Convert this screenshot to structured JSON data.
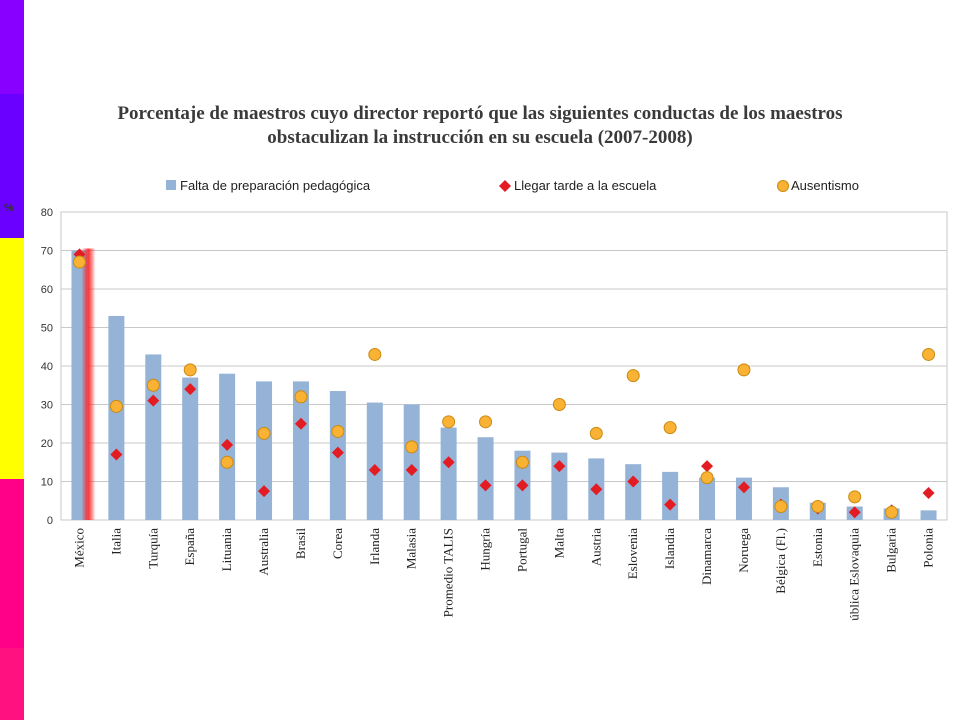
{
  "side_strips": [
    {
      "color": "#8800ff",
      "from": 0,
      "to": 0.13
    },
    {
      "color": "#6a00ff",
      "from": 0.13,
      "to": 0.33
    },
    {
      "color": "#ffff00",
      "from": 0.33,
      "to": 0.665
    },
    {
      "color": "#ff0088",
      "from": 0.665,
      "to": 0.9
    },
    {
      "color": "#ff1180",
      "from": 0.9,
      "to": 1
    }
  ],
  "chart_data": {
    "type": "bar",
    "title_line1": "Porcentaje de maestros cuyo director reportó que las siguientes conductas de los maestros",
    "title_line2": "obstaculizan la instrucción en su escuela (2007-2008)",
    "ylabel": "%",
    "ylim": [
      0,
      80
    ],
    "yticks": [
      "0",
      "10",
      "20",
      "30",
      "40",
      "50",
      "60",
      "70",
      "80"
    ],
    "grid": true,
    "legend_position": "top",
    "highlight_category": "México",
    "categories": [
      "México",
      "Italia",
      "Turquía",
      "España",
      "Lituania",
      "Australia",
      "Brasil",
      "Corea",
      "Irlanda",
      "Malasia",
      "Promedio TALIS",
      "Hungría",
      "Portugal",
      "Malta",
      "Austria",
      "Eslovenia",
      "Islandia",
      "Dinamarca",
      "Noruega",
      "Bélgica (Fl.)",
      "Estonia",
      "ública Eslovaquia",
      "Bulgaria",
      "Polonia"
    ],
    "series": [
      {
        "name": "Falta de preparación pedagógica",
        "kind": "bar",
        "color": "#95b3d7",
        "values": [
          70,
          53,
          43,
          37,
          38,
          36,
          36,
          33.5,
          30.5,
          30,
          24,
          21.5,
          18,
          17.5,
          16,
          14.5,
          12.5,
          11,
          11,
          8.5,
          4.5,
          3.5,
          3,
          2.5
        ]
      },
      {
        "name": "Llegar tarde a la escuela",
        "kind": "diamond",
        "color": "#e31b23",
        "values": [
          69,
          17,
          31,
          34,
          19.5,
          7.5,
          25,
          17.5,
          13,
          13,
          15,
          9,
          9,
          14,
          8,
          10,
          4,
          14,
          8.5,
          4,
          3,
          2,
          2.5,
          7
        ]
      },
      {
        "name": "Ausentismo",
        "kind": "circle",
        "color": "#f9b233",
        "values": [
          67,
          29.5,
          35,
          39,
          15,
          22.5,
          32,
          23,
          43,
          19,
          25.5,
          25.5,
          15,
          30,
          22.5,
          37.5,
          24,
          11,
          39,
          3.5,
          3.5,
          6,
          2,
          43
        ]
      }
    ]
  }
}
